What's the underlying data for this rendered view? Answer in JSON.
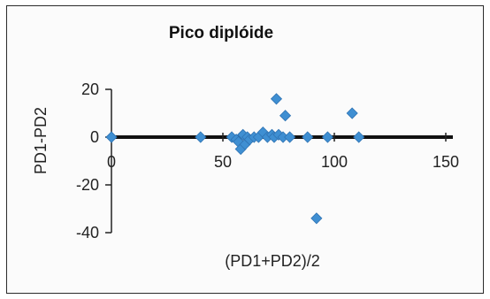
{
  "chart_data": {
    "type": "scatter",
    "title": "Pico diplóide",
    "xlabel": "(PD1+PD2)/2",
    "ylabel": "PD1-PD2",
    "xlim": [
      0,
      150
    ],
    "ylim": [
      -40,
      20
    ],
    "x_ticks": [
      "0",
      "50",
      "100",
      "150"
    ],
    "y_ticks": [
      "20",
      "0",
      "-20",
      "-40"
    ],
    "grid": false,
    "legend": "none",
    "marker_color": "#3f8fd2",
    "reference_line": {
      "y": 0,
      "color": "#111111"
    },
    "series": [
      {
        "points": [
          {
            "x": 0,
            "y": 0
          },
          {
            "x": 40,
            "y": 0
          },
          {
            "x": 54,
            "y": 0
          },
          {
            "x": 56,
            "y": -1
          },
          {
            "x": 57,
            "y": -2
          },
          {
            "x": 58,
            "y": -5
          },
          {
            "x": 59,
            "y": 1
          },
          {
            "x": 60,
            "y": -3
          },
          {
            "x": 61,
            "y": 0
          },
          {
            "x": 62,
            "y": -1
          },
          {
            "x": 64,
            "y": 0
          },
          {
            "x": 66,
            "y": 0
          },
          {
            "x": 68,
            "y": 2
          },
          {
            "x": 70,
            "y": 0
          },
          {
            "x": 72,
            "y": 1
          },
          {
            "x": 73,
            "y": 0
          },
          {
            "x": 74,
            "y": 16
          },
          {
            "x": 75,
            "y": 1
          },
          {
            "x": 77,
            "y": 0
          },
          {
            "x": 78,
            "y": 9
          },
          {
            "x": 80,
            "y": 0
          },
          {
            "x": 88,
            "y": 0
          },
          {
            "x": 92,
            "y": -34
          },
          {
            "x": 97,
            "y": 0
          },
          {
            "x": 108,
            "y": 10
          },
          {
            "x": 111,
            "y": 0
          }
        ]
      }
    ]
  }
}
